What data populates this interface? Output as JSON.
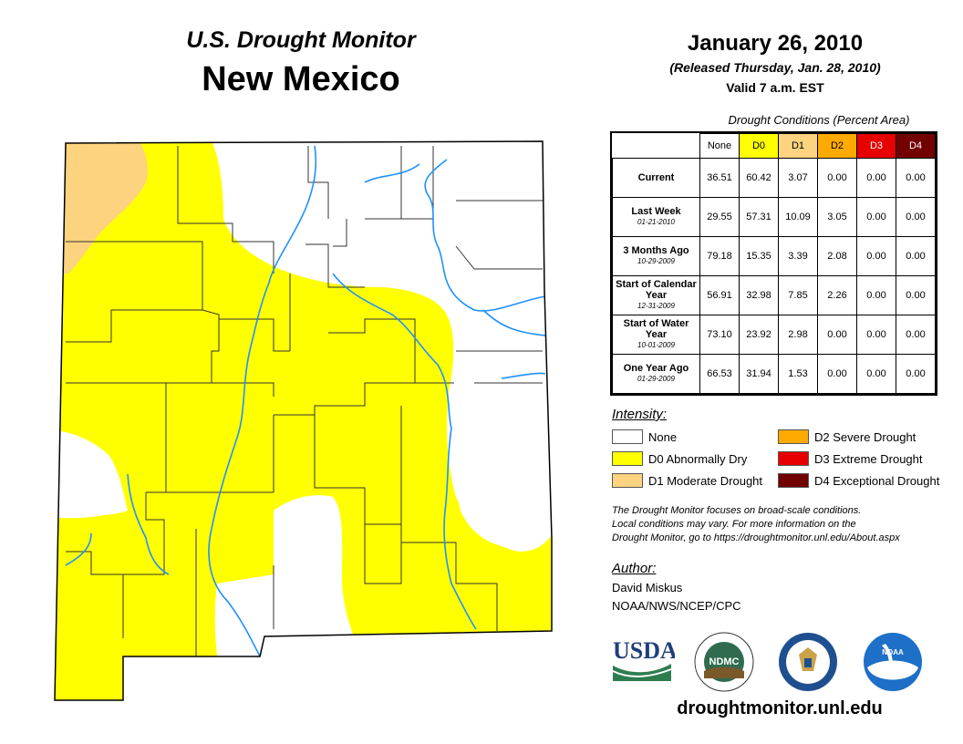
{
  "header": {
    "subtitle": "U.S. Drought Monitor",
    "state": "New Mexico",
    "date": "January 26, 2010",
    "released": "(Released Thursday, Jan. 28, 2010)",
    "valid": "Valid 7 a.m. EST"
  },
  "table": {
    "caption": "Drought Conditions (Percent Area)",
    "columns": [
      {
        "label": "None",
        "color": "#ffffff",
        "text_color": "#000000"
      },
      {
        "label": "D0",
        "color": "#ffff00",
        "text_color": "#000000"
      },
      {
        "label": "D1",
        "color": "#fcd37f",
        "text_color": "#000000"
      },
      {
        "label": "D2",
        "color": "#ffaa00",
        "text_color": "#000000"
      },
      {
        "label": "D3",
        "color": "#e60000",
        "text_color": "#ffffff"
      },
      {
        "label": "D4",
        "color": "#730000",
        "text_color": "#ffffff"
      }
    ],
    "rows": [
      {
        "label": "Current",
        "date": "",
        "values": [
          "36.51",
          "60.42",
          "3.07",
          "0.00",
          "0.00",
          "0.00"
        ]
      },
      {
        "label": "Last Week",
        "date": "01-21-2010",
        "values": [
          "29.55",
          "57.31",
          "10.09",
          "3.05",
          "0.00",
          "0.00"
        ]
      },
      {
        "label": "3 Months Ago",
        "date": "10-29-2009",
        "values": [
          "79.18",
          "15.35",
          "3.39",
          "2.08",
          "0.00",
          "0.00"
        ]
      },
      {
        "label": "Start of Calendar Year",
        "date": "12-31-2009",
        "values": [
          "56.91",
          "32.98",
          "7.85",
          "2.26",
          "0.00",
          "0.00"
        ]
      },
      {
        "label": "Start of Water Year",
        "date": "10-01-2009",
        "values": [
          "73.10",
          "23.92",
          "2.98",
          "0.00",
          "0.00",
          "0.00"
        ]
      },
      {
        "label": "One Year Ago",
        "date": "01-29-2009",
        "values": [
          "66.53",
          "31.94",
          "1.53",
          "0.00",
          "0.00",
          "0.00"
        ]
      }
    ]
  },
  "legend": {
    "title": "Intensity:",
    "items": [
      {
        "label": "None",
        "color": "#ffffff"
      },
      {
        "label": "D0 Abnormally Dry",
        "color": "#ffff00"
      },
      {
        "label": "D1 Moderate Drought",
        "color": "#fcd37f"
      },
      {
        "label": "D2 Severe Drought",
        "color": "#ffaa00"
      },
      {
        "label": "D3 Extreme Drought",
        "color": "#e60000"
      },
      {
        "label": "D4 Exceptional Drought",
        "color": "#730000"
      }
    ]
  },
  "note": {
    "line1": "The Drought Monitor focuses on broad-scale conditions.",
    "line2": "Local conditions may vary. For more information on the",
    "line3": "Drought Monitor, go to https://droughtmonitor.unl.edu/About.aspx"
  },
  "author": {
    "title": "Author:",
    "name": "David Miskus",
    "org": "NOAA/NWS/NCEP/CPC"
  },
  "logos": {
    "usda": "USDA",
    "ndmc": "NDMC",
    "noaa": "NOAA"
  },
  "footer_url": "droughtmonitor.unl.edu",
  "map_colors": {
    "none": "#ffffff",
    "d0": "#ffff00",
    "d1": "#fcd37f",
    "river": "#1e90ff",
    "county_line": "#333333"
  }
}
